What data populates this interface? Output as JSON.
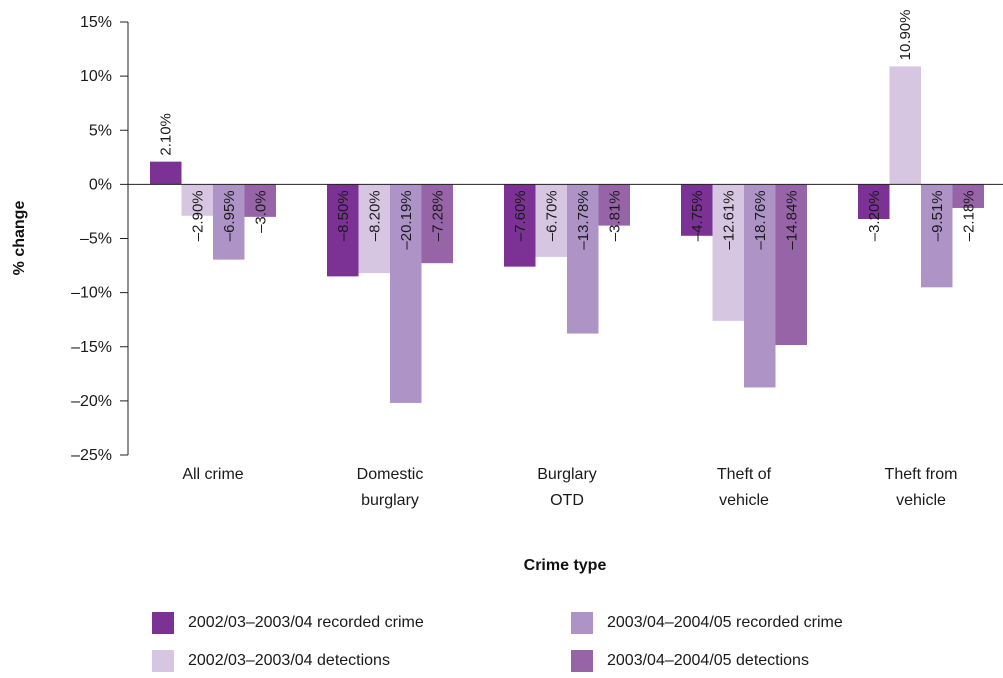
{
  "chart_data": {
    "type": "bar",
    "categories": [
      [
        "All crime"
      ],
      [
        "Domestic",
        "burglary"
      ],
      [
        "Burglary",
        "OTD"
      ],
      [
        "Theft of",
        "vehicle"
      ],
      [
        "Theft from",
        "vehicle"
      ]
    ],
    "series": [
      {
        "name": "2002/03–2003/04 recorded crime",
        "color": "#7b3294",
        "values": [
          2.1,
          -8.5,
          -7.6,
          -4.75,
          -3.2
        ],
        "labels": [
          "2.10%",
          "–8.50%",
          "–7.60%",
          "–4.75%",
          "–3.20%"
        ]
      },
      {
        "name": "2002/03–2003/04 detections",
        "color": "#d7c6e2",
        "values": [
          -2.9,
          -8.2,
          -6.7,
          -12.61,
          10.9
        ],
        "labels": [
          "–2.90%",
          "–8.20%",
          "–6.70%",
          "–12.61%",
          "10.90%"
        ]
      },
      {
        "name": "2003/04–2004/05 recorded crime",
        "color": "#ad93c6",
        "values": [
          -6.95,
          -20.19,
          -13.78,
          -18.76,
          -9.51
        ],
        "labels": [
          "–6.95%",
          "–20.19%",
          "–13.78%",
          "–18.76%",
          "–9.51%"
        ]
      },
      {
        "name": "2003/04–2004/05 detections",
        "color": "#9764a8",
        "values": [
          -3.0,
          -7.28,
          -3.81,
          -14.84,
          -2.18
        ],
        "labels": [
          "–3.0%",
          "–7.28%",
          "–3.81%",
          "–14.84%",
          "–2.18%"
        ]
      }
    ],
    "ylim": [
      -25,
      15
    ],
    "yticks": [
      15,
      10,
      5,
      0,
      -5,
      -10,
      -15,
      -20,
      -25
    ],
    "ytick_labels": [
      "15%",
      "10%",
      "5%",
      "0%",
      "–5%",
      "–10%",
      "–15%",
      "–20%",
      "–25%"
    ],
    "xlabel": "Crime type",
    "ylabel": "% change",
    "legend_position": "bottom",
    "grid": false
  }
}
